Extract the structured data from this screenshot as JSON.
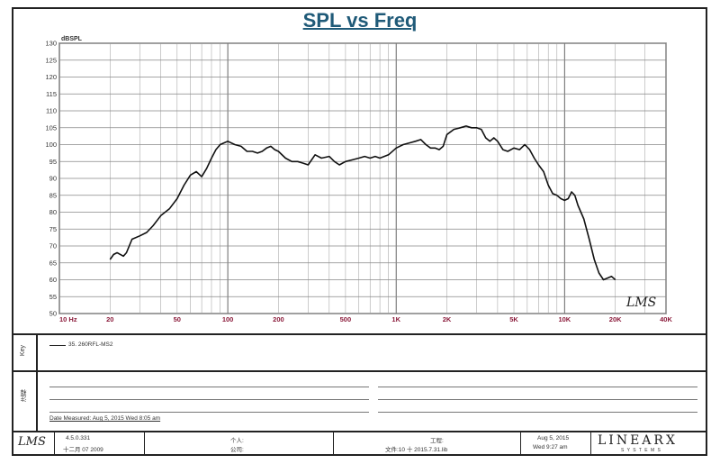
{
  "title": "SPL vs Freq",
  "chart_data": {
    "type": "line",
    "title": "SPL vs Freq",
    "xlabel": "",
    "ylabel": "dBSPL",
    "xscale": "log",
    "xlim": [
      10,
      40000
    ],
    "ylim": [
      50,
      130
    ],
    "grid": true,
    "yticks": [
      "50",
      "55",
      "60",
      "65",
      "70",
      "75",
      "80",
      "85",
      "90",
      "95",
      "100",
      "105",
      "110",
      "115",
      "120",
      "125",
      "130"
    ],
    "xticks": [
      {
        "value": 10,
        "label": "10  Hz"
      },
      {
        "value": 20,
        "label": "20"
      },
      {
        "value": 50,
        "label": "50"
      },
      {
        "value": 100,
        "label": "100"
      },
      {
        "value": 200,
        "label": "200"
      },
      {
        "value": 500,
        "label": "500"
      },
      {
        "value": 1000,
        "label": "1K"
      },
      {
        "value": 2000,
        "label": "2K"
      },
      {
        "value": 5000,
        "label": "5K"
      },
      {
        "value": 10000,
        "label": "10K"
      },
      {
        "value": 20000,
        "label": "20K"
      },
      {
        "value": 40000,
        "label": "40K"
      }
    ],
    "series": [
      {
        "name": "35. 260RFL-MS2",
        "color": "#111111",
        "x": [
          20,
          21,
          22,
          23,
          24,
          25,
          27,
          30,
          33,
          36,
          40,
          45,
          50,
          55,
          60,
          65,
          70,
          75,
          80,
          85,
          90,
          95,
          100,
          110,
          120,
          130,
          140,
          150,
          160,
          170,
          180,
          190,
          200,
          220,
          240,
          260,
          280,
          300,
          330,
          360,
          400,
          430,
          460,
          500,
          550,
          600,
          650,
          700,
          750,
          800,
          900,
          1000,
          1100,
          1200,
          1300,
          1400,
          1500,
          1600,
          1700,
          1800,
          1900,
          2000,
          2200,
          2400,
          2600,
          2800,
          3000,
          3200,
          3400,
          3600,
          3800,
          4000,
          4300,
          4600,
          5000,
          5400,
          5800,
          6200,
          6600,
          7000,
          7500,
          8000,
          8500,
          9000,
          9500,
          10000,
          10500,
          11000,
          11500,
          12000,
          13000,
          14000,
          15000,
          16000,
          17000,
          18000,
          19000,
          20000
        ],
        "values": [
          66,
          67.5,
          68,
          67.5,
          67,
          68,
          72,
          73,
          74,
          76,
          79,
          81,
          84,
          88,
          91,
          92,
          90.5,
          93,
          96,
          98.5,
          100,
          100.5,
          101,
          100,
          99.5,
          98,
          98,
          97.5,
          98,
          99,
          99.5,
          98.5,
          98,
          96,
          95,
          95,
          94.5,
          94,
          97,
          96,
          96.5,
          95,
          94,
          95,
          95.5,
          96,
          96.5,
          96,
          96.5,
          96,
          97,
          99,
          100,
          100.5,
          101,
          101.5,
          100,
          99,
          99,
          98.5,
          99.5,
          103,
          104.5,
          105,
          105.5,
          105,
          105,
          104.5,
          102,
          101,
          102,
          101,
          98.5,
          98,
          99,
          98.5,
          100,
          98.5,
          96,
          94,
          92,
          88,
          85.5,
          85,
          84,
          83.5,
          84,
          86,
          85,
          82,
          78,
          72,
          66,
          62,
          60,
          60.5,
          61,
          60
        ]
      }
    ]
  },
  "legend": {
    "side_label": "Key",
    "entry": "35. 260RFL-MS2"
  },
  "notes": {
    "side_label": "注释",
    "date_measured": "Date Measured: Aug 5, 2015  Wed  8:05 am"
  },
  "watermark": "LMS",
  "footer": {
    "logo": "LMS",
    "version": "4.5.0.331",
    "version_date": "十二月 07 2009",
    "person_label": "个人:",
    "company_label": "公司:",
    "project_label": "工程:",
    "file_label": "文件:10 十 2015.7.31.lib",
    "date_line1": "Aug  5, 2015",
    "date_line2": "Wed  9:27 am",
    "brand": "LINEARX",
    "brand_sub": "S Y S T E M S"
  }
}
